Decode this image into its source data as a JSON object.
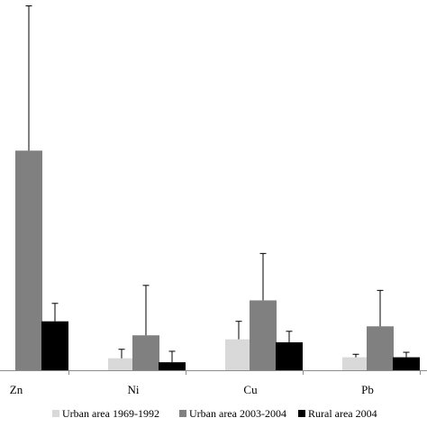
{
  "chart_data": {
    "type": "bar",
    "title": "",
    "xlabel": "",
    "ylabel": "",
    "categories": [
      "Zn",
      "Ni",
      "Cu",
      "Pb"
    ],
    "series": [
      {
        "name": "Urban area 1969-1992",
        "color": "#d9d9d9",
        "values": [
          0,
          12,
          31,
          13
        ],
        "errors": [
          0,
          9,
          18,
          3
        ]
      },
      {
        "name": "Urban area 2003-2004",
        "color": "#808080",
        "values": [
          220,
          35,
          70,
          44
        ],
        "errors": [
          145,
          50,
          47,
          36
        ]
      },
      {
        "name": "Rural area 2004",
        "color": "#000000",
        "values": [
          49,
          8,
          28,
          13
        ],
        "errors": [
          18,
          11,
          11,
          5
        ]
      }
    ],
    "ylim": [
      0,
      370
    ],
    "grid": false,
    "legend": "bottom"
  }
}
